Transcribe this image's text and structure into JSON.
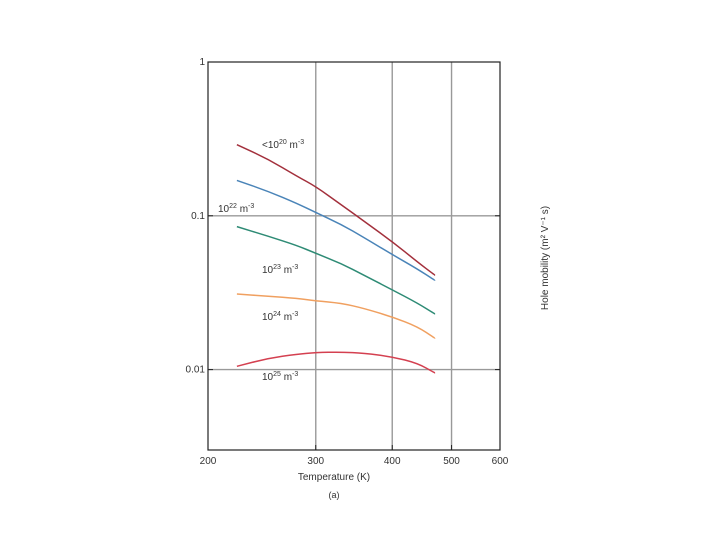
{
  "chart_data": {
    "type": "line",
    "xlabel": "Temperature (K)",
    "ylabel": "Hole mobility (m² V⁻¹ s)",
    "caption": "(a)",
    "x_scale": "log",
    "y_scale": "log",
    "xlim": [
      200,
      600
    ],
    "ylim": [
      0.003,
      1
    ],
    "x_ticks": [
      {
        "value": 200,
        "label": "200"
      },
      {
        "value": 300,
        "label": "300"
      },
      {
        "value": 400,
        "label": "400"
      },
      {
        "value": 500,
        "label": "500"
      },
      {
        "value": 600,
        "label": "600"
      }
    ],
    "y_ticks": [
      {
        "value": 1,
        "label": "1"
      },
      {
        "value": 0.1,
        "label": "0.1"
      },
      {
        "value": 0.01,
        "label": "0.01"
      }
    ],
    "grid_x": [
      300,
      400,
      500
    ],
    "grid_y": [
      0.1,
      0.01
    ],
    "series": [
      {
        "name": "<10²⁰ m⁻³",
        "label_base": "<10",
        "label_exp": "20",
        "label_unit": " m",
        "label_unit_exp": "-3",
        "color": "#a3303c",
        "x": [
          223,
          250,
          280,
          300,
          330,
          360,
          400,
          440,
          470
        ],
        "y": [
          0.29,
          0.235,
          0.18,
          0.155,
          0.118,
          0.092,
          0.068,
          0.05,
          0.041
        ]
      },
      {
        "name": "10²² m⁻³",
        "label_base": "10",
        "label_exp": "22",
        "label_unit": " m",
        "label_unit_exp": "-3",
        "color": "#4a84b8",
        "x": [
          223,
          250,
          280,
          300,
          330,
          360,
          400,
          440,
          470
        ],
        "y": [
          0.17,
          0.145,
          0.12,
          0.105,
          0.088,
          0.072,
          0.056,
          0.045,
          0.038
        ]
      },
      {
        "name": "10²³ m⁻³",
        "label_base": "10",
        "label_exp": "23",
        "label_unit": " m",
        "label_unit_exp": "-3",
        "color": "#2e8b75",
        "x": [
          223,
          250,
          280,
          300,
          330,
          360,
          400,
          440,
          470
        ],
        "y": [
          0.085,
          0.074,
          0.064,
          0.057,
          0.049,
          0.041,
          0.033,
          0.027,
          0.023
        ]
      },
      {
        "name": "10²⁴ m⁻³",
        "label_base": "10",
        "label_exp": "24",
        "label_unit": " m",
        "label_unit_exp": "-3",
        "color": "#f0a060",
        "x": [
          223,
          250,
          280,
          300,
          330,
          360,
          400,
          440,
          470
        ],
        "y": [
          0.031,
          0.03,
          0.029,
          0.028,
          0.027,
          0.025,
          0.022,
          0.019,
          0.016
        ]
      },
      {
        "name": "10²⁵ m⁻³",
        "label_base": "10",
        "label_exp": "25",
        "label_unit": " m",
        "label_unit_exp": "-3",
        "color": "#d44050",
        "x": [
          223,
          250,
          280,
          300,
          330,
          360,
          400,
          440,
          470
        ],
        "y": [
          0.0105,
          0.0118,
          0.0126,
          0.0129,
          0.013,
          0.0128,
          0.0121,
          0.011,
          0.0095
        ]
      }
    ]
  }
}
